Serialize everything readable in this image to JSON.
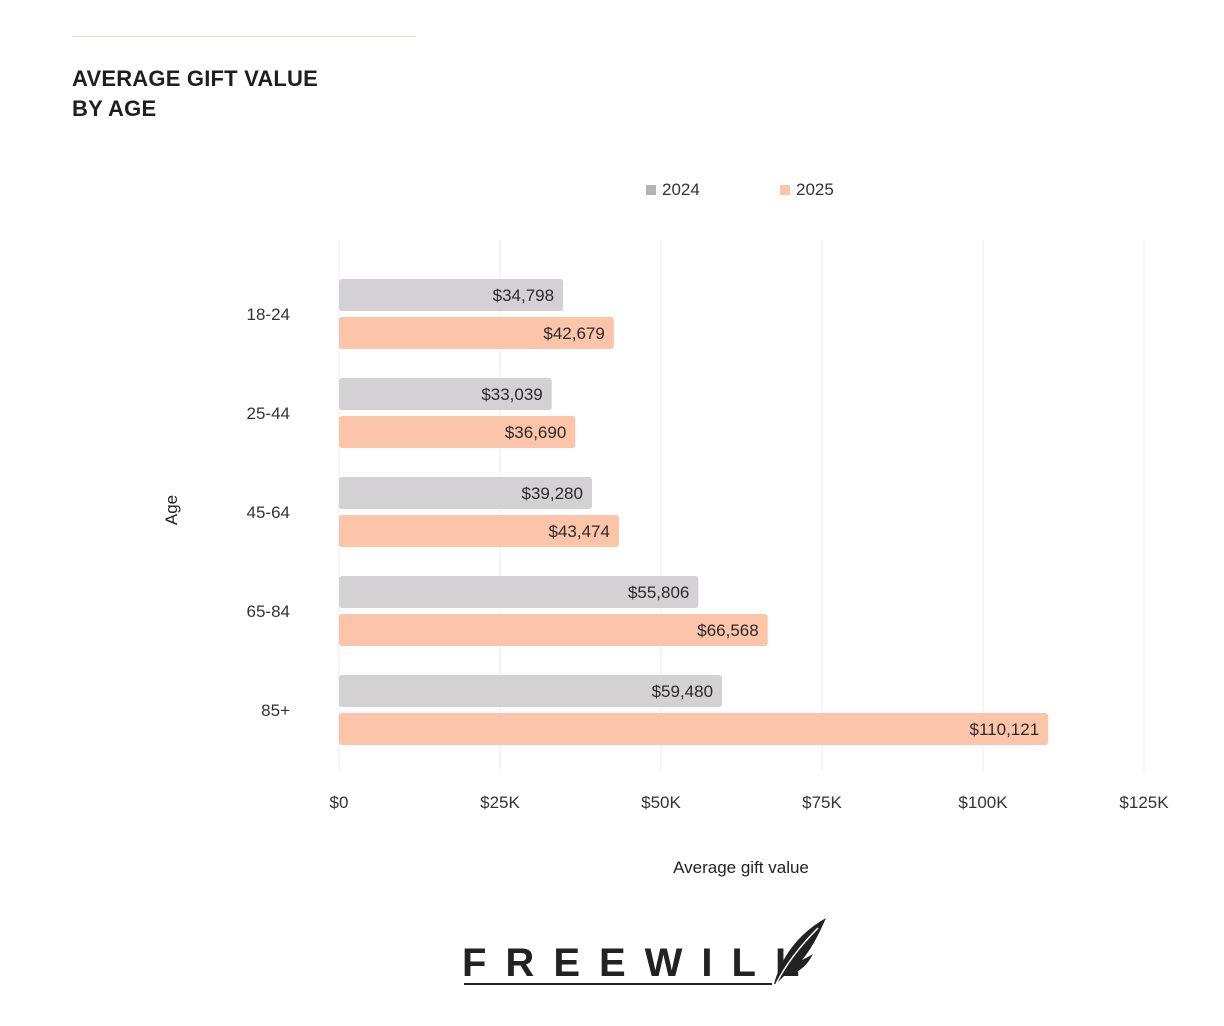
{
  "header": {
    "title_line1": "AVERAGE GIFT VALUE",
    "title_line2": "BY AGE"
  },
  "colors": {
    "series_2024": "#d3d1d4",
    "series_2025": "#fcc4a9",
    "grid": "#ebebeb",
    "rule": "#f3dcc7",
    "text": "#222222"
  },
  "chart_data": {
    "type": "bar",
    "orientation": "horizontal",
    "title": "AVERAGE GIFT VALUE BY AGE",
    "xlabel": "Average gift value",
    "ylabel": "Age",
    "categories": [
      "18-24",
      "25-44",
      "45-64",
      "65-84",
      "85+"
    ],
    "series": [
      {
        "name": "2024",
        "values": [
          34798,
          33039,
          39280,
          55806,
          59480
        ],
        "labels": [
          "$34,798",
          "$33,039",
          "$39,280",
          "$55,806",
          "$59,480"
        ]
      },
      {
        "name": "2025",
        "values": [
          42679,
          36690,
          43474,
          66568,
          110121
        ],
        "labels": [
          "$42,679",
          "$36,690",
          "$43,474",
          "$66,568",
          "$110,121"
        ]
      }
    ],
    "xlim": [
      0,
      125000
    ],
    "xticks": [
      0,
      25000,
      50000,
      75000,
      100000,
      125000
    ],
    "xtick_labels": [
      "$0",
      "$25K",
      "$50K",
      "$75K",
      "$100K",
      "$125K"
    ],
    "grid": "vertical",
    "legend_position": "top"
  },
  "logo": {
    "wordmark": "FREEWILL",
    "icon": "quill-feather-icon"
  }
}
